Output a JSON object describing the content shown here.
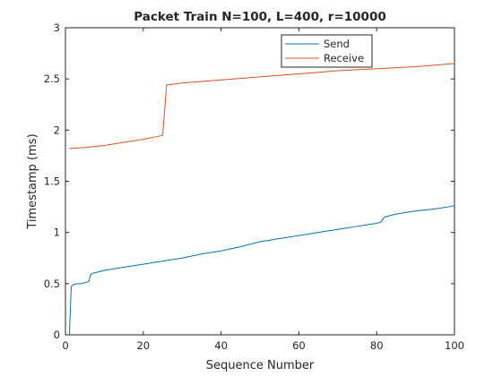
{
  "chart_data": {
    "type": "line",
    "title": "Packet Train N=100, L=400, r=10000",
    "xlabel": "Sequence Number",
    "ylabel": "Timestamp (ms)",
    "xlim": [
      0,
      100
    ],
    "ylim": [
      0,
      3
    ],
    "xticks": [
      0,
      20,
      40,
      60,
      80,
      100
    ],
    "yticks": [
      0,
      0.5,
      1,
      1.5,
      2,
      2.5,
      3
    ],
    "xtick_labels": [
      "0",
      "20",
      "40",
      "60",
      "80",
      "100"
    ],
    "ytick_labels": [
      "0",
      "0.5",
      "1",
      "1.5",
      "2",
      "2.5",
      "3"
    ],
    "grid": false,
    "legend_position": "top-right",
    "series": [
      {
        "name": "Send",
        "color": "#0072bd",
        "x": [
          1,
          1.5,
          2,
          3,
          4,
          5,
          6,
          6.5,
          7,
          8,
          10,
          15,
          20,
          25,
          30,
          35,
          40,
          45,
          50,
          55,
          60,
          65,
          70,
          75,
          80,
          81,
          82,
          85,
          90,
          95,
          100
        ],
        "y": [
          0,
          0.47,
          0.49,
          0.5,
          0.5,
          0.51,
          0.52,
          0.59,
          0.6,
          0.61,
          0.63,
          0.66,
          0.69,
          0.72,
          0.75,
          0.79,
          0.82,
          0.86,
          0.91,
          0.94,
          0.97,
          1.0,
          1.03,
          1.06,
          1.09,
          1.1,
          1.15,
          1.18,
          1.21,
          1.23,
          1.26
        ]
      },
      {
        "name": "Receive",
        "color": "#d95319",
        "x": [
          1,
          5,
          10,
          15,
          20,
          24,
          25,
          26,
          30,
          40,
          50,
          60,
          70,
          80,
          90,
          100
        ],
        "y": [
          1.82,
          1.83,
          1.85,
          1.88,
          1.91,
          1.94,
          1.95,
          2.44,
          2.46,
          2.49,
          2.52,
          2.55,
          2.58,
          2.6,
          2.62,
          2.65
        ]
      }
    ]
  }
}
